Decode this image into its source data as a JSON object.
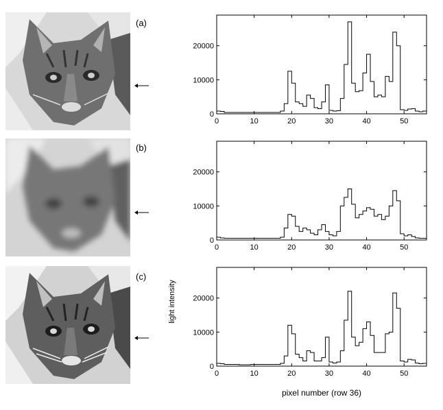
{
  "figure": {
    "panels": [
      {
        "label": "(a)",
        "image_desc": "cat"
      },
      {
        "label": "(b)",
        "image_desc": "cat"
      },
      {
        "label": "(c)",
        "image_desc": "cat"
      }
    ],
    "ylabel": "light intensity",
    "xlabel": "pixel number (row 36)"
  },
  "chart_data": [
    {
      "type": "line",
      "title": "",
      "xlabel": "",
      "ylabel": "",
      "xlim": [
        0,
        56
      ],
      "ylim": [
        0,
        29000
      ],
      "xticks": [
        0,
        10,
        20,
        30,
        40,
        50
      ],
      "yticks": [
        0,
        10000,
        20000
      ],
      "series": [
        {
          "x": [
            0,
            1,
            2,
            3,
            4,
            5,
            6,
            7,
            8,
            9,
            10,
            11,
            12,
            13,
            14,
            15,
            16,
            17,
            18,
            19,
            20,
            21,
            22,
            23,
            24,
            25,
            26,
            27,
            28,
            29,
            30,
            31,
            32,
            33,
            34,
            35,
            36,
            37,
            38,
            39,
            40,
            41,
            42,
            43,
            44,
            45,
            46,
            47,
            48,
            49,
            50,
            51,
            52,
            53,
            54,
            55
          ],
          "values": [
            800,
            700,
            400,
            400,
            400,
            400,
            400,
            400,
            400,
            400,
            400,
            400,
            400,
            400,
            400,
            400,
            400,
            800,
            3000,
            12500,
            9000,
            3500,
            3000,
            2200,
            5500,
            4500,
            1800,
            1500,
            3500,
            8500,
            1000,
            800,
            900,
            4500,
            14500,
            27000,
            9000,
            6500,
            6800,
            12000,
            17500,
            9500,
            5000,
            5500,
            5000,
            11000,
            9500,
            24000,
            20000,
            1200,
            1000,
            1400,
            1500,
            800,
            600,
            800
          ]
        }
      ]
    },
    {
      "type": "line",
      "title": "",
      "xlabel": "",
      "ylabel": "",
      "xlim": [
        0,
        56
      ],
      "ylim": [
        0,
        29000
      ],
      "xticks": [
        0,
        10,
        20,
        30,
        40,
        50
      ],
      "yticks": [
        0,
        10000,
        20000
      ],
      "series": [
        {
          "x": [
            0,
            1,
            2,
            3,
            4,
            5,
            6,
            7,
            8,
            9,
            10,
            11,
            12,
            13,
            14,
            15,
            16,
            17,
            18,
            19,
            20,
            21,
            22,
            23,
            24,
            25,
            26,
            27,
            28,
            29,
            30,
            31,
            32,
            33,
            34,
            35,
            36,
            37,
            38,
            39,
            40,
            41,
            42,
            43,
            44,
            45,
            46,
            47,
            48,
            49,
            50,
            51,
            52,
            53,
            54,
            55
          ],
          "values": [
            800,
            600,
            500,
            500,
            500,
            500,
            500,
            500,
            500,
            500,
            500,
            500,
            500,
            500,
            500,
            500,
            500,
            800,
            3500,
            7500,
            7000,
            4000,
            2500,
            3500,
            3000,
            2000,
            1500,
            3000,
            4500,
            2500,
            1500,
            1200,
            2500,
            10000,
            12500,
            15000,
            10500,
            6500,
            7500,
            8500,
            9500,
            9000,
            7000,
            7500,
            6000,
            7000,
            10000,
            14500,
            11500,
            1800,
            1200,
            1500,
            1000,
            600,
            500,
            500
          ]
        }
      ]
    },
    {
      "type": "line",
      "title": "",
      "xlabel": "",
      "ylabel": "",
      "xlim": [
        0,
        56
      ],
      "ylim": [
        0,
        29000
      ],
      "xticks": [
        0,
        10,
        20,
        30,
        40,
        50
      ],
      "yticks": [
        0,
        10000,
        20000
      ],
      "series": [
        {
          "x": [
            0,
            1,
            2,
            3,
            4,
            5,
            6,
            7,
            8,
            9,
            10,
            11,
            12,
            13,
            14,
            15,
            16,
            17,
            18,
            19,
            20,
            21,
            22,
            23,
            24,
            25,
            26,
            27,
            28,
            29,
            30,
            31,
            32,
            33,
            34,
            35,
            36,
            37,
            38,
            39,
            40,
            41,
            42,
            43,
            44,
            45,
            46,
            47,
            48,
            49,
            50,
            51,
            52,
            53,
            54,
            55
          ],
          "values": [
            800,
            700,
            500,
            500,
            500,
            500,
            400,
            400,
            400,
            500,
            500,
            500,
            500,
            500,
            500,
            500,
            500,
            800,
            3000,
            12000,
            9500,
            3500,
            2500,
            1500,
            4500,
            4000,
            1500,
            1500,
            2500,
            8500,
            1200,
            900,
            1200,
            4500,
            13500,
            22000,
            8500,
            6000,
            7000,
            11000,
            13000,
            9000,
            4000,
            4000,
            4000,
            9500,
            10000,
            21500,
            17000,
            1500,
            1200,
            2000,
            1800,
            900,
            700,
            800
          ]
        }
      ]
    }
  ]
}
